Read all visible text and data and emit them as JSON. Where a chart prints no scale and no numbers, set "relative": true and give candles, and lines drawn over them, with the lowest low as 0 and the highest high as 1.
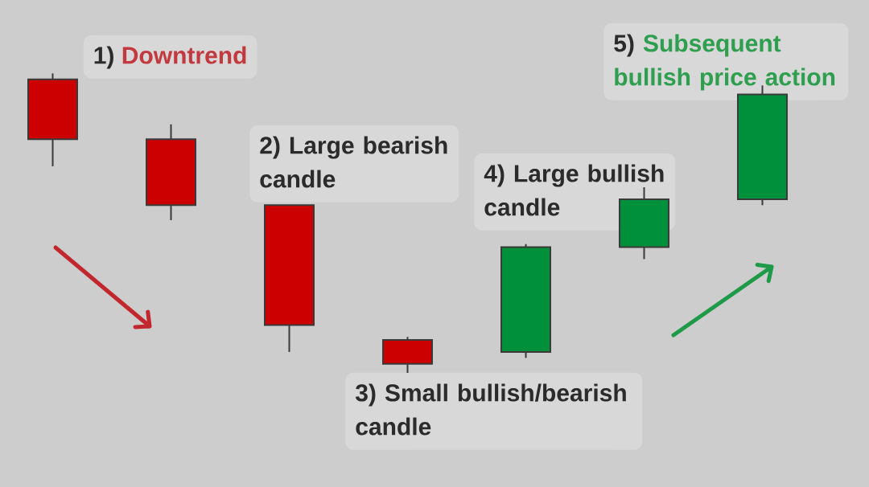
{
  "chart_data": {
    "type": "candlestick",
    "relative": true,
    "categories": [
      null,
      null,
      null,
      null,
      null,
      null,
      null
    ],
    "ohlc": [
      [
        0.98,
        1,
        0.69,
        0.78
      ],
      [
        0.78,
        0.83,
        0.51,
        0.56
      ],
      [
        0.56,
        0.56,
        0.07,
        0.16
      ],
      [
        0.11,
        0.12,
        0,
        0.03
      ],
      [
        0.07,
        0.43,
        0.05,
        0.42
      ],
      [
        0.42,
        0.62,
        0.38,
        0.58
      ],
      [
        0.58,
        0.96,
        0.56,
        0.93
      ]
    ],
    "colors": [
      "#cc0000",
      "#cc0000",
      "#cc0000",
      "#cc0000",
      "#00903c",
      "#00903c",
      "#00903c"
    ],
    "annotations": [
      "1) Downtrend",
      "2) Large bearish candle",
      "3) Small bullish/bearish candle",
      "4) Large bullish candle",
      "5) Subsequent bullish price action"
    ]
  }
}
